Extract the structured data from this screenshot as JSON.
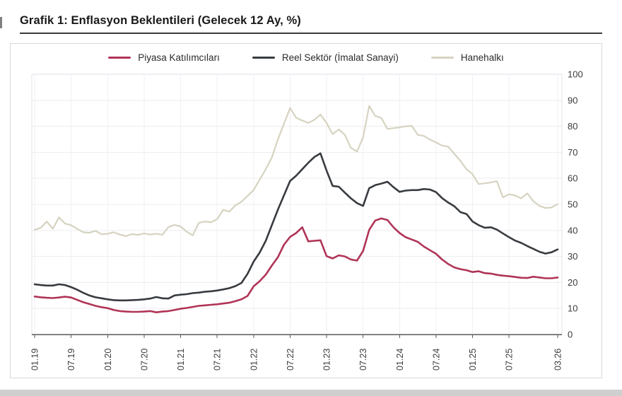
{
  "title": "Grafik 1: Enflasyon Beklentileri (Gelecek 12 Ay, %)",
  "colors": {
    "piyasa": "#b03457",
    "reel": "#383b3f",
    "hane": "#d6d3c0",
    "grid_h": "#ededf0",
    "grid_v": "#f1eff4",
    "plot_border": "#e3e2e8",
    "axis": "#5a5a5a",
    "tick_text": "#3c3c3c",
    "title_rule": "#3a3a3a"
  },
  "chart_data": {
    "type": "line",
    "title": "Grafik 1: Enflasyon Beklentileri (Gelecek 12 Ay, %)",
    "x_unit": "month",
    "x_range_labels": [
      "01.19",
      "03.26"
    ],
    "x_tick_labels": [
      "01.19",
      "07.19",
      "01.20",
      "07.20",
      "01.21",
      "07.21",
      "01.22",
      "07.22",
      "01.23",
      "07.23",
      "01.24",
      "07.24",
      "01.25",
      "07.25",
      "03.26"
    ],
    "x_tick_indices": [
      0,
      6,
      12,
      18,
      24,
      30,
      36,
      42,
      48,
      54,
      60,
      66,
      72,
      78,
      86
    ],
    "ylim": [
      0,
      100
    ],
    "y_ticks": [
      0,
      10,
      20,
      30,
      40,
      50,
      60,
      70,
      80,
      90,
      100
    ],
    "y_axis_side": "right",
    "grid": true,
    "legend_position": "top",
    "series": [
      {
        "name": "Piyasa Katılımcıları",
        "color": "#b03457",
        "values": [
          14.6,
          14.3,
          14.1,
          14.0,
          14.2,
          14.5,
          14.2,
          13.3,
          12.4,
          11.7,
          11.0,
          10.5,
          10.1,
          9.4,
          9.0,
          8.8,
          8.7,
          8.7,
          8.8,
          9.0,
          8.5,
          8.8,
          9.0,
          9.4,
          9.9,
          10.2,
          10.6,
          11.0,
          11.2,
          11.4,
          11.6,
          11.9,
          12.2,
          12.8,
          13.5,
          14.8,
          18.5,
          20.5,
          23.0,
          26.5,
          29.7,
          34.5,
          37.5,
          39.0,
          41.2,
          35.8,
          36.0,
          36.2,
          30.1,
          29.2,
          30.4,
          30.0,
          28.8,
          28.4,
          32.1,
          40.2,
          43.8,
          44.6,
          44.0,
          41.2,
          39.0,
          37.4,
          36.5,
          35.6,
          33.8,
          32.4,
          31.0,
          28.8,
          27.1,
          25.8,
          25.1,
          24.7,
          24.0,
          24.3,
          23.6,
          23.4,
          22.9,
          22.6,
          22.4,
          22.1,
          21.8,
          21.7,
          22.2,
          21.9,
          21.6,
          21.6,
          21.9
        ]
      },
      {
        "name": "Reel Sektör (İmalat Sanayi)",
        "color": "#383b3f",
        "values": [
          19.3,
          19.0,
          18.8,
          18.8,
          19.3,
          19.0,
          18.2,
          17.2,
          16.0,
          15.0,
          14.3,
          13.9,
          13.5,
          13.2,
          13.1,
          13.1,
          13.2,
          13.3,
          13.5,
          13.8,
          14.4,
          13.9,
          13.8,
          15.0,
          15.3,
          15.5,
          15.9,
          16.1,
          16.4,
          16.6,
          16.9,
          17.3,
          17.8,
          18.6,
          19.8,
          23.3,
          28.0,
          31.5,
          36.0,
          42.0,
          48.0,
          53.5,
          59.0,
          61.0,
          63.5,
          66.0,
          68.2,
          69.6,
          63.0,
          57.1,
          56.8,
          54.5,
          52.3,
          50.5,
          49.4,
          56.2,
          57.4,
          58.0,
          58.7,
          56.6,
          54.8,
          55.3,
          55.5,
          55.5,
          55.9,
          55.7,
          54.7,
          52.4,
          50.7,
          49.3,
          47.0,
          46.3,
          43.4,
          42.0,
          41.0,
          41.2,
          40.3,
          38.8,
          37.4,
          36.1,
          35.2,
          34.0,
          32.9,
          31.8,
          31.1,
          31.6,
          32.7
        ]
      },
      {
        "name": "Hanehalkı",
        "color": "#d6d3c0",
        "values": [
          40.2,
          41.0,
          43.4,
          40.6,
          45.0,
          42.6,
          42.0,
          40.6,
          39.3,
          39.1,
          39.8,
          38.5,
          38.7,
          39.3,
          38.4,
          37.8,
          38.6,
          38.3,
          38.8,
          38.4,
          38.7,
          38.3,
          41.3,
          42.1,
          41.5,
          39.5,
          38.1,
          42.9,
          43.4,
          43.1,
          44.3,
          47.9,
          47.2,
          49.6,
          51.0,
          53.2,
          55.5,
          59.5,
          63.5,
          68.0,
          75.0,
          81.0,
          87.0,
          83.3,
          82.2,
          81.3,
          82.5,
          84.5,
          81.3,
          77.0,
          78.8,
          76.7,
          71.7,
          70.3,
          75.8,
          87.8,
          84.0,
          83.2,
          79.0,
          79.3,
          79.6,
          80.0,
          80.2,
          76.7,
          76.3,
          74.9,
          73.8,
          72.6,
          72.2,
          69.4,
          66.7,
          63.5,
          61.6,
          57.8,
          58.1,
          58.4,
          58.9,
          52.7,
          53.9,
          53.4,
          52.3,
          54.2,
          51.2,
          49.4,
          48.6,
          48.8,
          50.1
        ]
      }
    ]
  }
}
